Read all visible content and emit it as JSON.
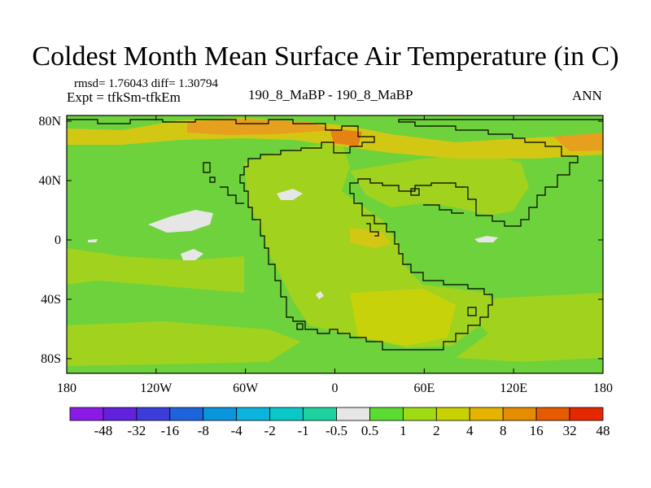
{
  "title": "Coldest Month Mean Surface Air Temperature (in C)",
  "stats": {
    "rmsd_text": "rmsd= 1.76043 diff= 1.30794"
  },
  "experiment_text": "Expt = tfkSm-tfkEm",
  "comparison_text": "190_8_MaBP - 190_8_MaBP",
  "season_label": "ANN",
  "map": {
    "x_ticks": [
      "180",
      "120W",
      "60W",
      "0",
      "60E",
      "120E",
      "180"
    ],
    "y_ticks": [
      "80N",
      "40N",
      "0",
      "40S",
      "80S"
    ]
  },
  "colorbar": {
    "labels": [
      "-48",
      "-32",
      "-16",
      "-8",
      "-4",
      "-2",
      "-1",
      "-0.5",
      "0.5",
      "1",
      "2",
      "4",
      "8",
      "16",
      "32",
      "48"
    ],
    "colors": [
      "#8c1ae6",
      "#6221dd",
      "#3c3cd8",
      "#1e64dc",
      "#0a96dc",
      "#0ab4dc",
      "#0ac8c8",
      "#1ed2a0",
      "#e6e6e6",
      "#5adc32",
      "#a0dc14",
      "#c8d200",
      "#e6b400",
      "#e68c00",
      "#e65a00",
      "#e62800"
    ]
  },
  "field_colors": {
    "green": "#6ed23c",
    "yellowgreen": "#a0d21e",
    "olive": "#c8d20a",
    "yellow": "#d2c814",
    "orange": "#e6a01e",
    "darkorange": "#e68214",
    "white": "#e6e6e6"
  }
}
